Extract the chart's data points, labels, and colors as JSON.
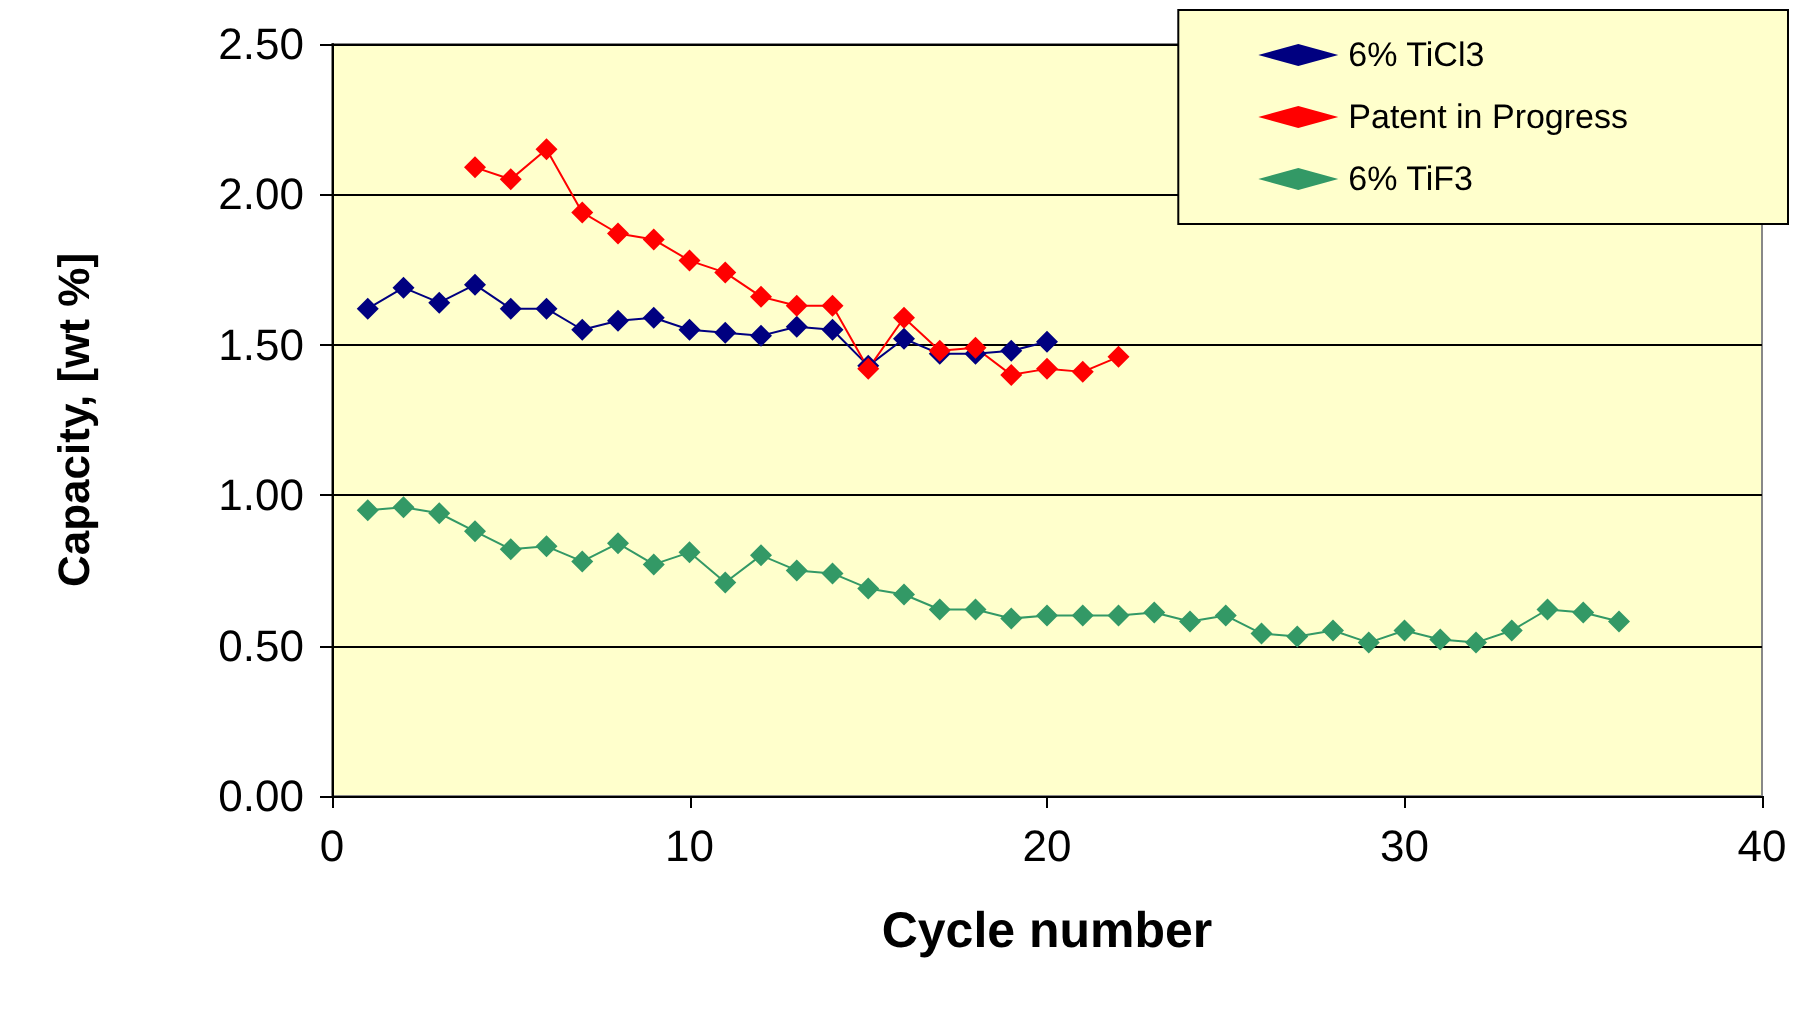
{
  "chart_data": {
    "type": "line",
    "xlabel": "Cycle number",
    "ylabel": "Capacity, [wt %]",
    "xlim": [
      0,
      40
    ],
    "xticks": [
      0,
      10,
      20,
      30,
      40
    ],
    "ylim": [
      0,
      2.5
    ],
    "yticks": [
      {
        "value": 0,
        "label": "0.00"
      },
      {
        "value": 0.5,
        "label": "0.50"
      },
      {
        "value": 1,
        "label": "1.00"
      },
      {
        "value": 1.5,
        "label": "1.50"
      },
      {
        "value": 2,
        "label": "2.00"
      },
      {
        "value": 2.5,
        "label": "2.50"
      }
    ],
    "grid": "y",
    "legend": "top right",
    "marker": "diamond",
    "line_style": "solid",
    "series": [
      {
        "name": "6% TiCl3",
        "color": "#000080",
        "x": [
          1,
          2,
          3,
          4,
          5,
          6,
          7,
          8,
          9,
          10,
          11,
          12,
          13,
          14,
          15,
          16,
          17,
          18,
          19,
          20
        ],
        "values": [
          1.62,
          1.69,
          1.64,
          1.7,
          1.62,
          1.62,
          1.55,
          1.58,
          1.59,
          1.55,
          1.54,
          1.53,
          1.56,
          1.55,
          1.43,
          1.52,
          1.47,
          1.47,
          1.48,
          1.51
        ]
      },
      {
        "name": "Patent in Progress",
        "color": "#ff0000",
        "x": [
          4,
          5,
          6,
          7,
          8,
          9,
          10,
          11,
          12,
          13,
          14,
          15,
          16,
          17,
          18,
          19,
          20,
          21,
          22
        ],
        "values": [
          2.09,
          2.05,
          2.15,
          1.94,
          1.87,
          1.85,
          1.78,
          1.74,
          1.66,
          1.63,
          1.63,
          1.42,
          1.59,
          1.48,
          1.49,
          1.4,
          1.42,
          1.41,
          1.46
        ]
      },
      {
        "name": "6% TiF3",
        "color": "#339966",
        "x": [
          1,
          2,
          3,
          4,
          5,
          6,
          7,
          8,
          9,
          10,
          11,
          12,
          13,
          14,
          15,
          16,
          17,
          18,
          19,
          20,
          21,
          22,
          23,
          24,
          25,
          26,
          27,
          28,
          29,
          30,
          31,
          32,
          33,
          34,
          35,
          36
        ],
        "values": [
          0.95,
          0.96,
          0.94,
          0.88,
          0.82,
          0.83,
          0.78,
          0.84,
          0.77,
          0.81,
          0.71,
          0.8,
          0.75,
          0.74,
          0.69,
          0.67,
          0.62,
          0.62,
          0.59,
          0.6,
          0.6,
          0.6,
          0.61,
          0.58,
          0.6,
          0.54,
          0.53,
          0.55,
          0.51,
          0.55,
          0.52,
          0.51,
          0.55,
          0.62,
          0.61,
          0.58
        ]
      }
    ]
  }
}
